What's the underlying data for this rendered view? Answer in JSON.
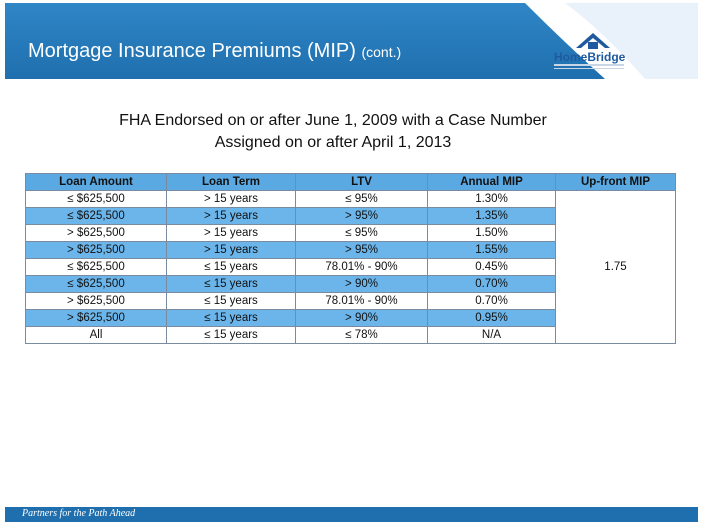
{
  "header": {
    "title": "Mortgage Insurance Premiums (MIP)",
    "title_suffix": "(cont.)",
    "logo_text": "HomeBridge",
    "colors": {
      "bar": "#1f6fae",
      "table_header": "#5aa9e2",
      "band": "#6bb5ea"
    }
  },
  "subtitle": {
    "line1": "FHA Endorsed on or after June 1, 2009 with a Case Number",
    "line2": "Assigned on or after April 1, 2013"
  },
  "table": {
    "columns": [
      "Loan Amount",
      "Loan Term",
      "LTV",
      "Annual MIP",
      "Up-front MIP"
    ],
    "rows": [
      [
        "≤ $625,500",
        "> 15 years",
        "≤ 95%",
        "1.30%"
      ],
      [
        "≤ $625,500",
        "> 15 years",
        "> 95%",
        "1.35%"
      ],
      [
        "> $625,500",
        "> 15 years",
        "≤ 95%",
        "1.50%"
      ],
      [
        "> $625,500",
        "> 15 years",
        "> 95%",
        "1.55%"
      ],
      [
        "≤ $625,500",
        "≤ 15 years",
        "78.01% - 90%",
        "0.45%"
      ],
      [
        "≤ $625,500",
        "≤ 15 years",
        "> 90%",
        "0.70%"
      ],
      [
        "> $625,500",
        "≤ 15 years",
        "78.01% - 90%",
        "0.70%"
      ],
      [
        "> $625,500",
        "≤ 15 years",
        "> 90%",
        "0.95%"
      ],
      [
        "All",
        "≤ 15 years",
        "≤ 78%",
        "N/A"
      ]
    ],
    "upfront_mip": "1.75"
  },
  "footer": {
    "tagline": "Partners for the Path Ahead"
  }
}
